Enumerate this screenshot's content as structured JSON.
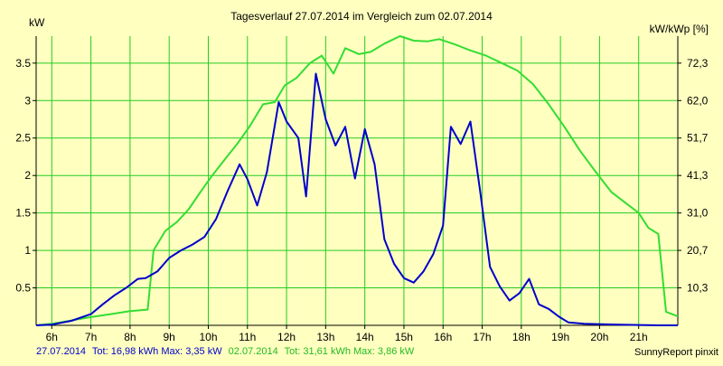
{
  "chart_data": {
    "type": "line",
    "title": "Tagesverlauf 27.07.2014 im Vergleich zum 02.07.2014",
    "ylabel_left": "kW",
    "ylabel_right": "kW/kWp [%]",
    "ylim": [
      0,
      3.86
    ],
    "xlim": [
      5.6,
      22.0
    ],
    "x_ticks": [
      {
        "x": 6,
        "label": "6h"
      },
      {
        "x": 7,
        "label": "7h"
      },
      {
        "x": 8,
        "label": "8h"
      },
      {
        "x": 9,
        "label": "9h"
      },
      {
        "x": 10,
        "label": "10h"
      },
      {
        "x": 11,
        "label": "11h"
      },
      {
        "x": 12,
        "label": "12h"
      },
      {
        "x": 13,
        "label": "13h"
      },
      {
        "x": 14,
        "label": "14h"
      },
      {
        "x": 15,
        "label": "15h"
      },
      {
        "x": 16,
        "label": "16h"
      },
      {
        "x": 17,
        "label": "17h"
      },
      {
        "x": 18,
        "label": "18h"
      },
      {
        "x": 19,
        "label": "19h"
      },
      {
        "x": 20,
        "label": "20h"
      },
      {
        "x": 21,
        "label": "21h"
      }
    ],
    "y_ticks_left": [
      {
        "y": 0.5,
        "label": "0.5"
      },
      {
        "y": 1,
        "label": "1"
      },
      {
        "y": 1.5,
        "label": "1.5"
      },
      {
        "y": 2,
        "label": "2"
      },
      {
        "y": 2.5,
        "label": "2.5"
      },
      {
        "y": 3,
        "label": "3"
      },
      {
        "y": 3.5,
        "label": "3.5"
      }
    ],
    "y_ticks_right": [
      {
        "y": 0.5,
        "label": "10,3"
      },
      {
        "y": 1,
        "label": "20,7"
      },
      {
        "y": 1.5,
        "label": "31,0"
      },
      {
        "y": 2,
        "label": "41,3"
      },
      {
        "y": 2.5,
        "label": "51,7"
      },
      {
        "y": 3,
        "label": "62,0"
      },
      {
        "y": 3.5,
        "label": "72,3"
      }
    ],
    "grid": true,
    "series": [
      {
        "name": "27.07.2014",
        "color": "#0000cc",
        "points": [
          [
            5.6,
            0
          ],
          [
            6.0,
            0.01
          ],
          [
            6.5,
            0.06
          ],
          [
            7.0,
            0.15
          ],
          [
            7.3,
            0.28
          ],
          [
            7.6,
            0.4
          ],
          [
            7.9,
            0.5
          ],
          [
            8.2,
            0.62
          ],
          [
            8.4,
            0.63
          ],
          [
            8.7,
            0.72
          ],
          [
            9.0,
            0.9
          ],
          [
            9.3,
            1.0
          ],
          [
            9.6,
            1.08
          ],
          [
            9.9,
            1.18
          ],
          [
            10.2,
            1.42
          ],
          [
            10.5,
            1.8
          ],
          [
            10.8,
            2.15
          ],
          [
            11.0,
            1.95
          ],
          [
            11.25,
            1.6
          ],
          [
            11.5,
            2.05
          ],
          [
            11.8,
            2.98
          ],
          [
            12.0,
            2.72
          ],
          [
            12.3,
            2.5
          ],
          [
            12.5,
            1.72
          ],
          [
            12.75,
            3.36
          ],
          [
            13.0,
            2.75
          ],
          [
            13.25,
            2.4
          ],
          [
            13.5,
            2.65
          ],
          [
            13.75,
            1.96
          ],
          [
            14.0,
            2.62
          ],
          [
            14.25,
            2.15
          ],
          [
            14.5,
            1.15
          ],
          [
            14.75,
            0.82
          ],
          [
            15.0,
            0.63
          ],
          [
            15.25,
            0.57
          ],
          [
            15.5,
            0.72
          ],
          [
            15.75,
            0.95
          ],
          [
            16.0,
            1.33
          ],
          [
            16.2,
            2.65
          ],
          [
            16.45,
            2.42
          ],
          [
            16.7,
            2.72
          ],
          [
            16.95,
            1.78
          ],
          [
            17.2,
            0.78
          ],
          [
            17.45,
            0.52
          ],
          [
            17.7,
            0.33
          ],
          [
            17.95,
            0.43
          ],
          [
            18.2,
            0.62
          ],
          [
            18.45,
            0.28
          ],
          [
            18.7,
            0.22
          ],
          [
            18.95,
            0.12
          ],
          [
            19.2,
            0.04
          ],
          [
            19.6,
            0.02
          ],
          [
            20.5,
            0.01
          ],
          [
            21.5,
            0.0
          ],
          [
            22.0,
            0.0
          ]
        ]
      },
      {
        "name": "02.07.2014",
        "color": "#33dd33",
        "points": [
          [
            5.6,
            0
          ],
          [
            6.0,
            0.02
          ],
          [
            7.0,
            0.11
          ],
          [
            7.5,
            0.15
          ],
          [
            8.0,
            0.19
          ],
          [
            8.45,
            0.21
          ],
          [
            8.6,
            1.0
          ],
          [
            8.9,
            1.26
          ],
          [
            9.2,
            1.38
          ],
          [
            9.5,
            1.55
          ],
          [
            9.8,
            1.78
          ],
          [
            10.1,
            2.0
          ],
          [
            10.4,
            2.2
          ],
          [
            10.75,
            2.43
          ],
          [
            11.05,
            2.65
          ],
          [
            11.4,
            2.95
          ],
          [
            11.7,
            2.98
          ],
          [
            11.95,
            3.2
          ],
          [
            12.25,
            3.3
          ],
          [
            12.6,
            3.5
          ],
          [
            12.9,
            3.6
          ],
          [
            13.2,
            3.36
          ],
          [
            13.5,
            3.7
          ],
          [
            13.85,
            3.62
          ],
          [
            14.15,
            3.65
          ],
          [
            14.5,
            3.76
          ],
          [
            14.9,
            3.86
          ],
          [
            15.25,
            3.8
          ],
          [
            15.6,
            3.79
          ],
          [
            15.9,
            3.82
          ],
          [
            16.3,
            3.75
          ],
          [
            16.7,
            3.67
          ],
          [
            17.1,
            3.6
          ],
          [
            17.5,
            3.5
          ],
          [
            17.9,
            3.4
          ],
          [
            18.3,
            3.22
          ],
          [
            18.7,
            2.95
          ],
          [
            19.1,
            2.65
          ],
          [
            19.5,
            2.33
          ],
          [
            19.9,
            2.05
          ],
          [
            20.3,
            1.78
          ],
          [
            20.7,
            1.62
          ],
          [
            21.0,
            1.5
          ],
          [
            21.25,
            1.3
          ],
          [
            21.5,
            1.22
          ],
          [
            21.7,
            0.18
          ],
          [
            22.0,
            0.12
          ]
        ]
      }
    ]
  },
  "footer": {
    "series1_prefix": "27.07.2014",
    "series1_text": "Tot: 16,98 kWh Max: 3,35 kW",
    "series2_prefix": "02.07.2014",
    "series2_text": "Tot: 31,61 kWh Max: 3,86 kW",
    "credit": "SunnyReport pinxit"
  },
  "colors": {
    "background": "#ffffc0",
    "grid": "#22cc22",
    "series1": "#0000cc",
    "series2": "#33dd33"
  }
}
